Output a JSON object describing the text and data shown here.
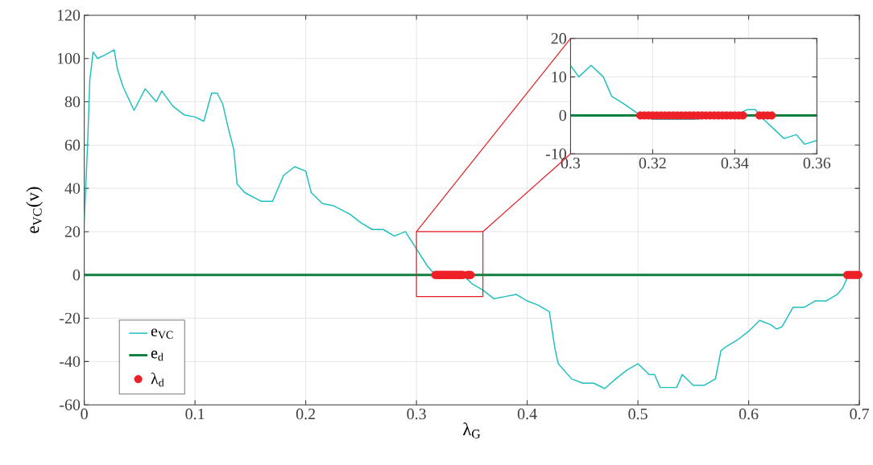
{
  "chart_data": [
    {
      "type": "line",
      "xlabel": "λ$_{G}$",
      "ylabel": "e$_{VC}$(v)",
      "xlim": [
        0,
        0.7
      ],
      "ylim": [
        -60,
        120
      ],
      "xticks": [
        0,
        0.1,
        0.2,
        0.3,
        0.4,
        0.5,
        0.6,
        0.7
      ],
      "yticks": [
        -60,
        -40,
        -20,
        0,
        20,
        40,
        60,
        80,
        100,
        120
      ],
      "grid": true,
      "legend": "bottom left",
      "series": [
        {
          "name": "e$_{VC}$",
          "color": "#1fbfbf",
          "x": [
            0,
            0.003,
            0.005,
            0.008,
            0.012,
            0.02,
            0.027,
            0.03,
            0.035,
            0.045,
            0.055,
            0.065,
            0.07,
            0.08,
            0.09,
            0.1,
            0.108,
            0.115,
            0.12,
            0.125,
            0.13,
            0.135,
            0.138,
            0.145,
            0.16,
            0.17,
            0.18,
            0.19,
            0.2,
            0.205,
            0.215,
            0.225,
            0.24,
            0.25,
            0.26,
            0.27,
            0.28,
            0.29,
            0.3,
            0.31,
            0.317,
            0.33,
            0.342,
            0.345,
            0.35,
            0.36,
            0.37,
            0.38,
            0.39,
            0.4,
            0.41,
            0.42,
            0.425,
            0.428,
            0.44,
            0.45,
            0.46,
            0.47,
            0.48,
            0.49,
            0.5,
            0.51,
            0.515,
            0.52,
            0.535,
            0.54,
            0.55,
            0.56,
            0.57,
            0.575,
            0.58,
            0.59,
            0.6,
            0.61,
            0.62,
            0.625,
            0.63,
            0.64,
            0.65,
            0.66,
            0.67,
            0.68,
            0.685,
            0.69
          ],
          "values": [
            25,
            60,
            90,
            103,
            100,
            102,
            104,
            95,
            87,
            76,
            86,
            80,
            85,
            78,
            74,
            73,
            71,
            84,
            84,
            79,
            68,
            58,
            42,
            38,
            34,
            34,
            46,
            50,
            48,
            38,
            33,
            32,
            28,
            24,
            21,
            21,
            18,
            20,
            12,
            4,
            0,
            null,
            0,
            null,
            -4,
            -7,
            -11,
            -10,
            -9,
            -12,
            -14,
            -17,
            -34,
            -41,
            -48,
            -50,
            -50,
            -52.5,
            -48,
            -44,
            -41,
            -46,
            -46,
            -52,
            -52,
            -46,
            -51,
            -51,
            -48,
            -35,
            -33,
            -30,
            -26,
            -21,
            -23,
            -25,
            -24,
            -15,
            -15,
            -12,
            -12,
            -9,
            -6,
            0
          ]
        },
        {
          "name": "e$_{d}$",
          "color": "#0f7f3f",
          "x": [
            0,
            0.7
          ],
          "values": [
            0,
            0
          ]
        },
        {
          "name": "λ$_{d}$",
          "type": "scatter",
          "marker": "circle",
          "color": "#ee2027",
          "x": [
            0.317,
            0.318,
            0.319,
            0.32,
            0.321,
            0.322,
            0.323,
            0.324,
            0.325,
            0.326,
            0.327,
            0.328,
            0.329,
            0.33,
            0.331,
            0.332,
            0.333,
            0.334,
            0.335,
            0.336,
            0.337,
            0.338,
            0.339,
            0.34,
            0.341,
            0.342,
            0.346,
            0.347,
            0.348,
            0.349,
            0.689,
            0.691,
            0.693,
            0.695,
            0.697,
            0.699
          ],
          "values": [
            0,
            0,
            0,
            0,
            0,
            0,
            0,
            0,
            0,
            0,
            0,
            0,
            0,
            0,
            0,
            0,
            0,
            0,
            0,
            0,
            0,
            0,
            0,
            0,
            0,
            0,
            0,
            0,
            0,
            0,
            0,
            0,
            0,
            0,
            0,
            0
          ]
        }
      ]
    },
    {
      "type": "line",
      "xlim": [
        0.3,
        0.36
      ],
      "ylim": [
        -10,
        20
      ],
      "xticks": [
        0.3,
        0.32,
        0.34,
        0.36
      ],
      "yticks": [
        -10,
        0,
        10,
        20
      ],
      "grid": true,
      "series": [
        {
          "color": "#1fbfbf",
          "x": [
            0.3,
            0.302,
            0.305,
            0.308,
            0.31,
            0.313,
            0.317,
            0.32,
            0.33,
            0.34,
            0.343,
            0.345,
            0.347,
            0.35,
            0.352,
            0.355,
            0.357,
            0.36
          ],
          "values": [
            13,
            10,
            13,
            10,
            5,
            3,
            0,
            -1,
            -1,
            0,
            1.5,
            1.5,
            -1,
            -4,
            -6,
            -5,
            -7.5,
            -6.5
          ]
        },
        {
          "color": "#0f7f3f",
          "x": [
            0.3,
            0.36
          ],
          "values": [
            0,
            0
          ]
        },
        {
          "type": "scatter",
          "marker": "circle",
          "color": "#ee2027",
          "x": [
            0.317,
            0.318,
            0.319,
            0.32,
            0.321,
            0.322,
            0.323,
            0.324,
            0.325,
            0.326,
            0.327,
            0.328,
            0.329,
            0.33,
            0.331,
            0.332,
            0.333,
            0.334,
            0.335,
            0.336,
            0.337,
            0.338,
            0.339,
            0.34,
            0.341,
            0.342,
            0.346,
            0.347,
            0.348,
            0.349
          ],
          "values": [
            0,
            0,
            0,
            0,
            0,
            0,
            0,
            0,
            0,
            0,
            0,
            0,
            0,
            0,
            0,
            0,
            0,
            0,
            0,
            0,
            0,
            0,
            0,
            0,
            0,
            0,
            0,
            0,
            0,
            0
          ]
        }
      ]
    }
  ]
}
